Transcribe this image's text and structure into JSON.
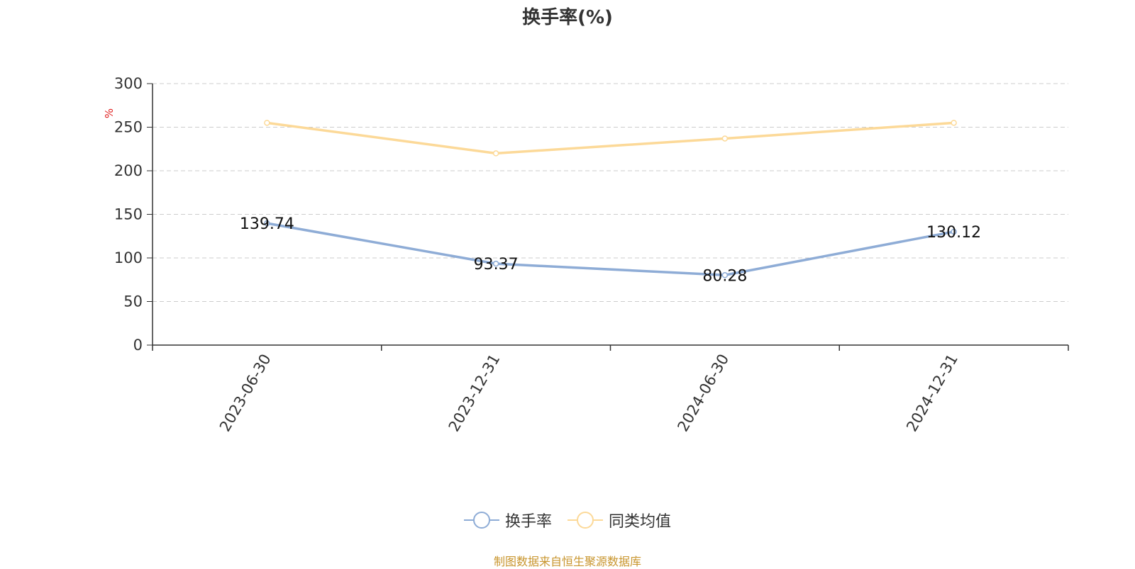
{
  "chart_data": {
    "type": "line",
    "title": "换手率(%)",
    "ylabel": "%",
    "xlabel": "",
    "categories": [
      "2023-06-30",
      "2023-12-31",
      "2024-06-30",
      "2024-12-31"
    ],
    "ylim": [
      0,
      300
    ],
    "yticks": [
      0,
      50,
      100,
      150,
      200,
      250,
      300
    ],
    "grid": true,
    "legend_position": "bottom",
    "series": [
      {
        "name": "换手率",
        "values": [
          139.74,
          93.37,
          80.28,
          130.12
        ],
        "data_labels": [
          "139.74",
          "93.37",
          "80.28",
          "130.12"
        ],
        "color": "#8eacd6"
      },
      {
        "name": "同类均值",
        "values": [
          255,
          220,
          237,
          255
        ],
        "color": "#fcd998"
      }
    ]
  },
  "footer": {
    "source": "制图数据来自恒生聚源数据库"
  }
}
